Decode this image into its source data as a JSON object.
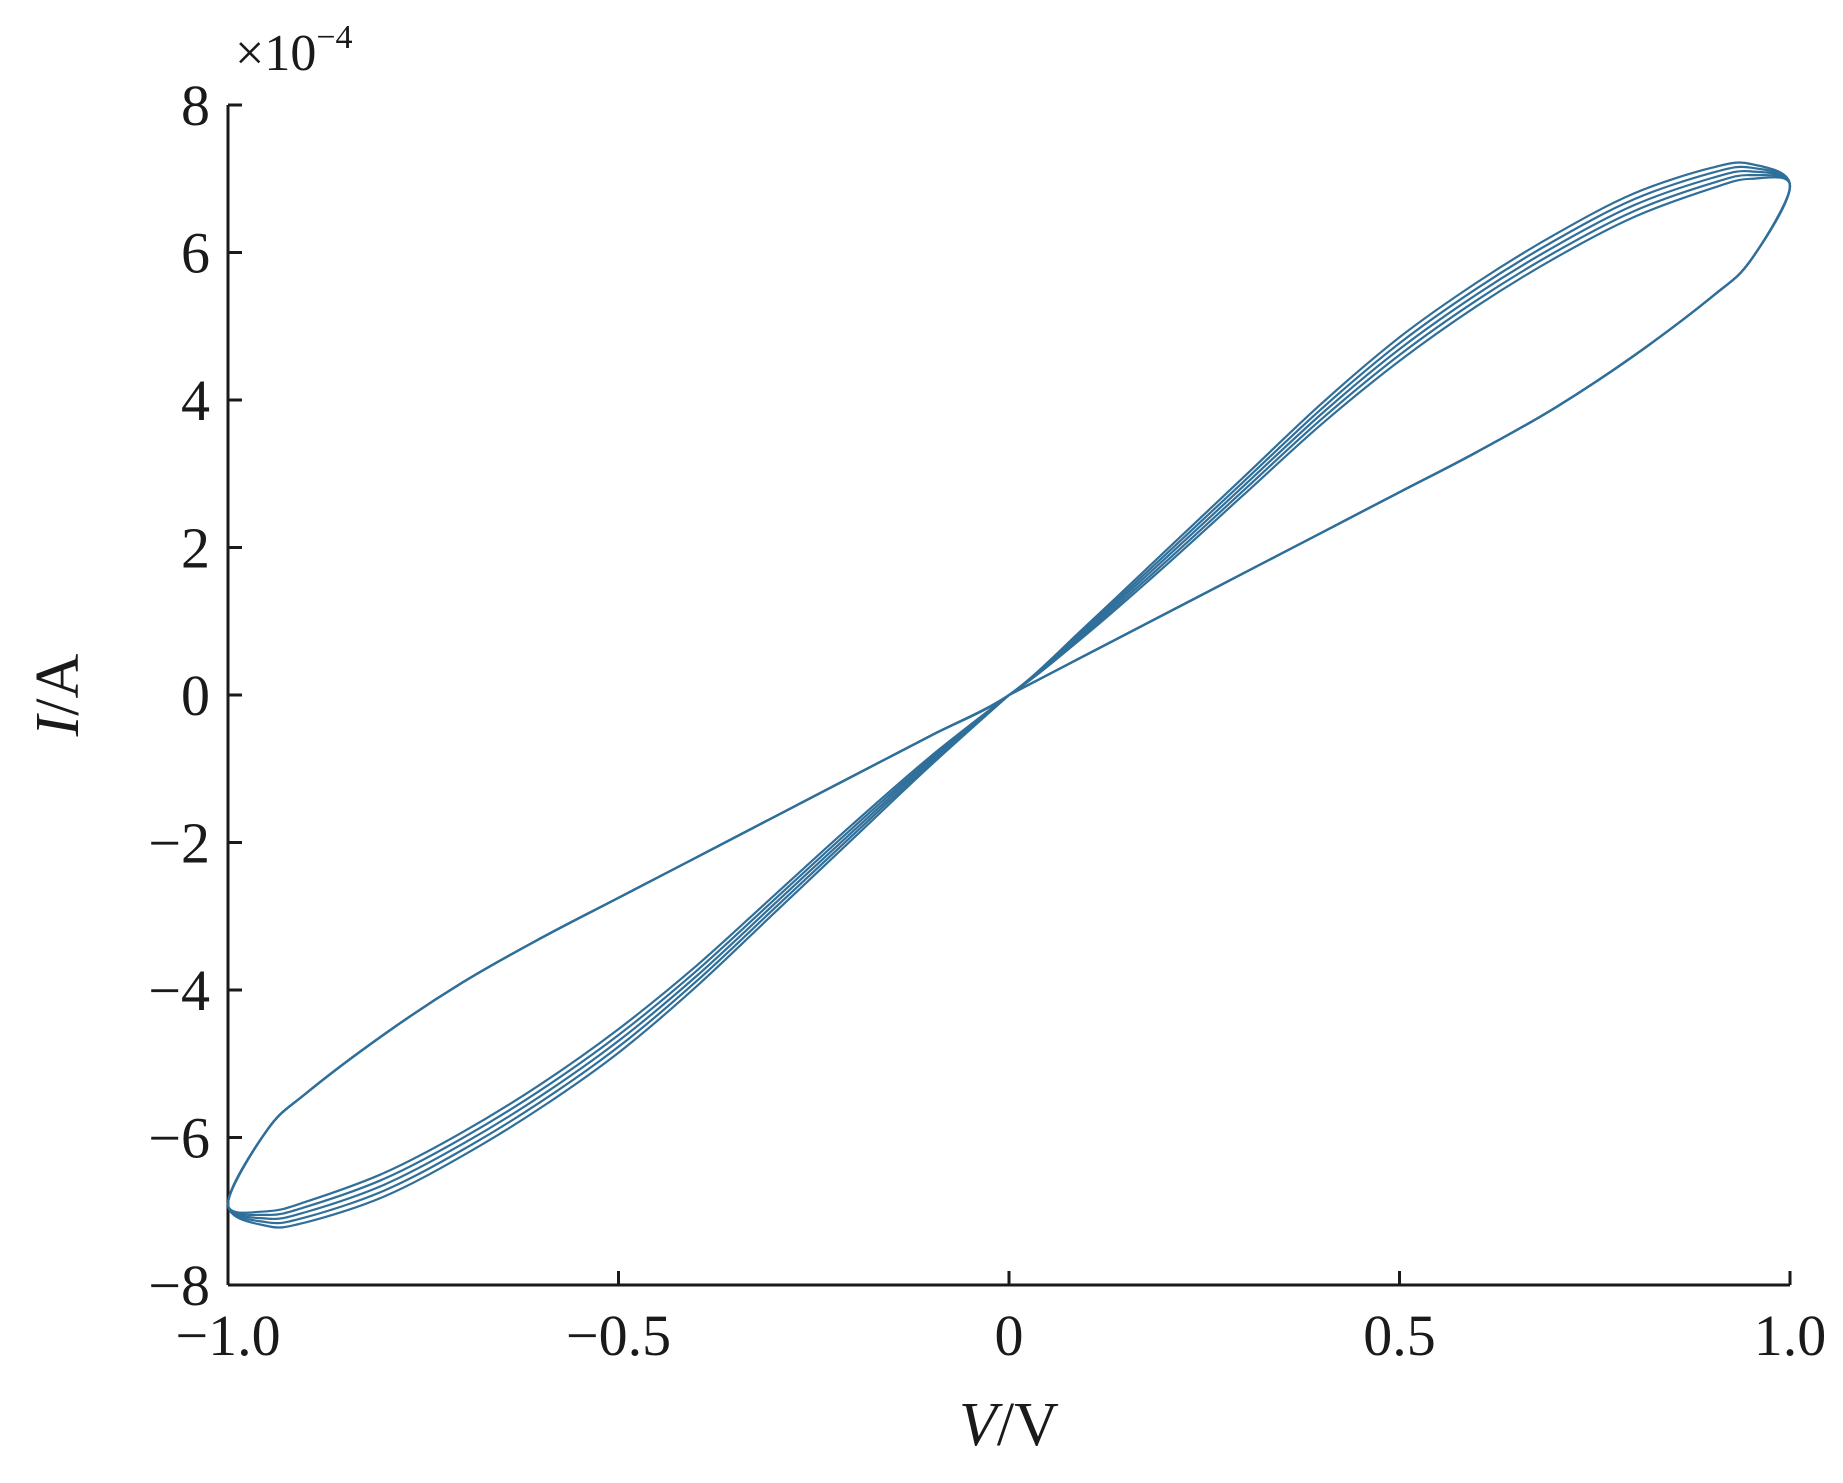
{
  "chart_data": {
    "type": "line",
    "title": "",
    "xlabel": {
      "symbol": "V",
      "unit": "V"
    },
    "ylabel": {
      "symbol": "I",
      "unit": "A"
    },
    "y_scale_note": {
      "base": "×10",
      "exponent": "−4"
    },
    "xlim": [
      -1.0,
      1.0
    ],
    "ylim": [
      -8,
      8
    ],
    "xticks": [
      -1.0,
      -0.5,
      0,
      0.5,
      1.0
    ],
    "xtick_labels": [
      "−1.0",
      "−0.5",
      "0",
      "0.5",
      "1.0"
    ],
    "yticks": [
      -8,
      -6,
      -4,
      -2,
      0,
      2,
      4,
      6,
      8
    ],
    "ytick_labels": [
      "−8",
      "−6",
      "−4",
      "−2",
      "0",
      "2",
      "4",
      "6",
      "8"
    ],
    "grid": false,
    "legend": "none",
    "line_color": "#2f6f9a",
    "description": "pinched hysteresis loop, several overlapping cycles",
    "series": [
      {
        "cycle": 1,
        "x": [
          0,
          0.1,
          0.2,
          0.3,
          0.4,
          0.5,
          0.6,
          0.7,
          0.8,
          0.9,
          0.95,
          1.0,
          0.95,
          0.9,
          0.8,
          0.7,
          0.6,
          0.5,
          0.4,
          0.3,
          0.2,
          0.1,
          0,
          -0.1,
          -0.2,
          -0.3,
          -0.4,
          -0.5,
          -0.6,
          -0.7,
          -0.8,
          -0.9,
          -0.95,
          -1.0,
          -0.95,
          -0.9,
          -0.8,
          -0.7,
          -0.6,
          -0.5,
          -0.4,
          -0.3,
          -0.2,
          -0.1,
          0
        ],
        "y": [
          0,
          0.55,
          1.1,
          1.65,
          2.2,
          2.75,
          3.3,
          3.9,
          4.6,
          5.4,
          5.9,
          6.9,
          7.2,
          7.15,
          6.8,
          6.25,
          5.6,
          4.85,
          3.95,
          2.95,
          1.95,
          0.95,
          0,
          -0.55,
          -1.1,
          -1.65,
          -2.2,
          -2.75,
          -3.3,
          -3.9,
          -4.6,
          -5.4,
          -5.9,
          -6.9,
          -7.2,
          -7.15,
          -6.8,
          -6.25,
          -5.6,
          -4.85,
          -3.95,
          -2.95,
          -1.95,
          -0.95,
          0
        ]
      },
      {
        "cycle": 2,
        "x": [
          0,
          0.1,
          0.2,
          0.3,
          0.4,
          0.5,
          0.6,
          0.7,
          0.8,
          0.9,
          0.95,
          1.0,
          0.95,
          0.9,
          0.8,
          0.7,
          0.6,
          0.5,
          0.4,
          0.3,
          0.2,
          0.1,
          0,
          -0.1,
          -0.2,
          -0.3,
          -0.4,
          -0.5,
          -0.6,
          -0.7,
          -0.8,
          -0.9,
          -0.95,
          -1.0,
          -0.95,
          -0.9,
          -0.8,
          -0.7,
          -0.6,
          -0.5,
          -0.4,
          -0.3,
          -0.2,
          -0.1,
          0
        ],
        "y": [
          0,
          0.55,
          1.1,
          1.65,
          2.2,
          2.75,
          3.3,
          3.9,
          4.6,
          5.4,
          5.9,
          6.9,
          7.15,
          7.08,
          6.72,
          6.17,
          5.52,
          4.77,
          3.88,
          2.89,
          1.9,
          0.92,
          0,
          -0.55,
          -1.1,
          -1.65,
          -2.2,
          -2.75,
          -3.3,
          -3.9,
          -4.6,
          -5.4,
          -5.9,
          -6.9,
          -7.15,
          -7.08,
          -6.72,
          -6.17,
          -5.52,
          -4.77,
          -3.88,
          -2.89,
          -1.9,
          -0.92,
          0
        ]
      },
      {
        "cycle": 3,
        "x": [
          0,
          0.1,
          0.2,
          0.3,
          0.4,
          0.5,
          0.6,
          0.7,
          0.8,
          0.9,
          0.95,
          1.0,
          0.95,
          0.9,
          0.8,
          0.7,
          0.6,
          0.5,
          0.4,
          0.3,
          0.2,
          0.1,
          0,
          -0.1,
          -0.2,
          -0.3,
          -0.4,
          -0.5,
          -0.6,
          -0.7,
          -0.8,
          -0.9,
          -0.95,
          -1.0,
          -0.95,
          -0.9,
          -0.8,
          -0.7,
          -0.6,
          -0.5,
          -0.4,
          -0.3,
          -0.2,
          -0.1,
          0
        ],
        "y": [
          0,
          0.55,
          1.1,
          1.65,
          2.2,
          2.75,
          3.3,
          3.9,
          4.6,
          5.4,
          5.9,
          6.9,
          7.1,
          7.01,
          6.64,
          6.09,
          5.44,
          4.69,
          3.81,
          2.83,
          1.85,
          0.89,
          0,
          -0.55,
          -1.1,
          -1.65,
          -2.2,
          -2.75,
          -3.3,
          -3.9,
          -4.6,
          -5.4,
          -5.9,
          -6.9,
          -7.1,
          -7.01,
          -6.64,
          -6.09,
          -5.44,
          -4.69,
          -3.81,
          -2.83,
          -1.85,
          -0.89,
          0
        ]
      },
      {
        "cycle": 4,
        "x": [
          0,
          0.1,
          0.2,
          0.3,
          0.4,
          0.5,
          0.6,
          0.7,
          0.8,
          0.9,
          0.95,
          1.0,
          0.95,
          0.9,
          0.8,
          0.7,
          0.6,
          0.5,
          0.4,
          0.3,
          0.2,
          0.1,
          0,
          -0.1,
          -0.2,
          -0.3,
          -0.4,
          -0.5,
          -0.6,
          -0.7,
          -0.8,
          -0.9,
          -0.95,
          -1.0,
          -0.95,
          -0.9,
          -0.8,
          -0.7,
          -0.6,
          -0.5,
          -0.4,
          -0.3,
          -0.2,
          -0.1,
          0
        ],
        "y": [
          0,
          0.55,
          1.1,
          1.65,
          2.2,
          2.75,
          3.3,
          3.9,
          4.6,
          5.4,
          5.9,
          6.9,
          7.05,
          6.94,
          6.56,
          6.01,
          5.36,
          4.61,
          3.74,
          2.77,
          1.8,
          0.86,
          0,
          -0.55,
          -1.1,
          -1.65,
          -2.2,
          -2.75,
          -3.3,
          -3.9,
          -4.6,
          -5.4,
          -5.9,
          -6.9,
          -7.05,
          -6.94,
          -6.56,
          -6.01,
          -5.36,
          -4.61,
          -3.74,
          -2.77,
          -1.8,
          -0.86,
          0
        ]
      },
      {
        "cycle": 5,
        "x": [
          0,
          0.1,
          0.2,
          0.3,
          0.4,
          0.5,
          0.6,
          0.7,
          0.8,
          0.9,
          0.95,
          1.0,
          0.95,
          0.9,
          0.8,
          0.7,
          0.6,
          0.5,
          0.4,
          0.3,
          0.2,
          0.1,
          0,
          -0.1,
          -0.2,
          -0.3,
          -0.4,
          -0.5,
          -0.6,
          -0.7,
          -0.8,
          -0.9,
          -0.95,
          -1.0,
          -0.95,
          -0.9,
          -0.8,
          -0.7,
          -0.6,
          -0.5,
          -0.4,
          -0.3,
          -0.2,
          -0.1,
          0
        ],
        "y": [
          0,
          0.55,
          1.1,
          1.65,
          2.2,
          2.75,
          3.3,
          3.9,
          4.6,
          5.4,
          5.9,
          6.9,
          7.0,
          6.87,
          6.48,
          5.93,
          5.28,
          4.53,
          3.67,
          2.71,
          1.75,
          0.83,
          0,
          -0.55,
          -1.1,
          -1.65,
          -2.2,
          -2.75,
          -3.3,
          -3.9,
          -4.6,
          -5.4,
          -5.9,
          -6.9,
          -7.0,
          -6.87,
          -6.48,
          -5.93,
          -5.28,
          -4.53,
          -3.67,
          -2.71,
          -1.75,
          -0.83,
          0
        ]
      }
    ]
  }
}
